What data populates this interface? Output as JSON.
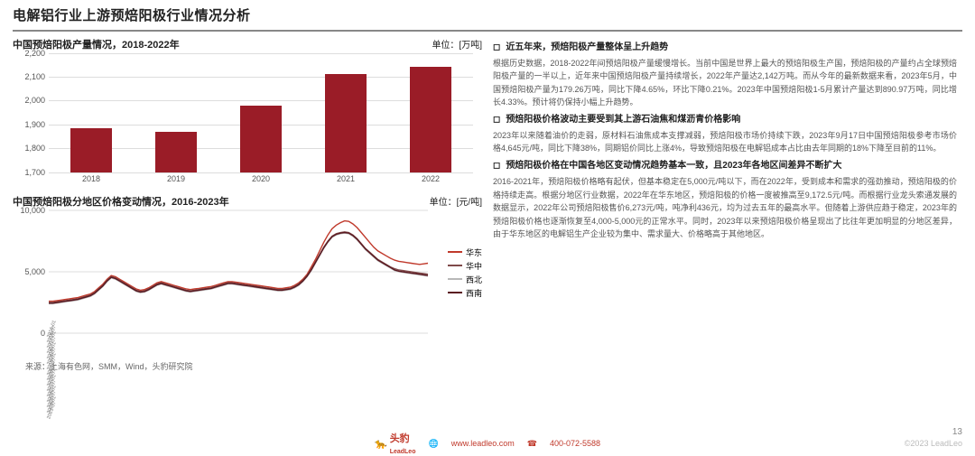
{
  "page_title": "电解铝行业上游预焙阳极行业情况分析",
  "page_number": "13",
  "copyright": "©2023 LeadLeo",
  "source_label": "来源：上海有色网，SMM，Wind，头豹研究院",
  "logo_text_cn": "头豹",
  "logo_text_en": "LeadLeo",
  "footer_url": "www.leadleo.com",
  "footer_phone": "400-072-5588",
  "bar_chart": {
    "title": "中国预焙阳极产量情况，2018-2022年",
    "unit": "单位：[万吨]",
    "type": "bar",
    "categories": [
      "2018",
      "2019",
      "2020",
      "2021",
      "2022"
    ],
    "values": [
      1885,
      1870,
      1980,
      2110,
      2140
    ],
    "ylim": [
      1700,
      2200
    ],
    "yticks": [
      1700,
      1800,
      1900,
      2000,
      2100,
      2200
    ],
    "bar_color": "#9a1c27",
    "grid_color": "#dddddd",
    "axis_font_size": 9
  },
  "line_chart": {
    "title": "中国预焙阳极分地区价格变动情况，2016-2023年",
    "unit": "单位：[元/吨]",
    "type": "line",
    "ylim": [
      0,
      10000
    ],
    "yticks": [
      0,
      5000,
      10000
    ],
    "series": [
      {
        "name": "华东",
        "color": "#c0392b",
        "values": [
          2600,
          2600,
          2650,
          2700,
          2750,
          2800,
          2850,
          2900,
          3000,
          3100,
          3200,
          3400,
          3700,
          4000,
          4400,
          4700,
          4600,
          4400,
          4200,
          4000,
          3800,
          3600,
          3500,
          3550,
          3700,
          3900,
          4100,
          4200,
          4100,
          4000,
          3900,
          3800,
          3700,
          3600,
          3550,
          3600,
          3650,
          3700,
          3750,
          3800,
          3900,
          4000,
          4100,
          4200,
          4200,
          4150,
          4100,
          4050,
          4000,
          3950,
          3900,
          3850,
          3800,
          3750,
          3700,
          3650,
          3650,
          3700,
          3750,
          3900,
          4100,
          4400,
          4800,
          5400,
          6000,
          6700,
          7400,
          8000,
          8500,
          8800,
          9000,
          9150,
          9100,
          8900,
          8600,
          8200,
          7800,
          7400,
          7000,
          6700,
          6500,
          6300,
          6100,
          5950,
          5850,
          5800,
          5750,
          5700,
          5650,
          5600,
          5650,
          5700
        ]
      },
      {
        "name": "华中",
        "color": "#7f4a4a",
        "values": [
          2500,
          2500,
          2550,
          2600,
          2650,
          2700,
          2750,
          2800,
          2900,
          3000,
          3100,
          3300,
          3600,
          3900,
          4300,
          4600,
          4500,
          4300,
          4100,
          3900,
          3700,
          3500,
          3400,
          3450,
          3600,
          3800,
          4000,
          4100,
          4000,
          3900,
          3800,
          3700,
          3600,
          3500,
          3450,
          3500,
          3550,
          3600,
          3650,
          3700,
          3800,
          3900,
          4000,
          4100,
          4100,
          4050,
          4000,
          3950,
          3900,
          3850,
          3800,
          3750,
          3700,
          3650,
          3600,
          3550,
          3550,
          3600,
          3650,
          3800,
          4000,
          4300,
          4700,
          5200,
          5800,
          6400,
          7000,
          7500,
          7900,
          8100,
          8200,
          8250,
          8200,
          8000,
          7700,
          7300,
          6900,
          6600,
          6300,
          6000,
          5800,
          5600,
          5400,
          5250,
          5150,
          5100,
          5050,
          5000,
          4950,
          4900,
          4850,
          4800
        ]
      },
      {
        "name": "西北",
        "color": "#b8b8b8",
        "values": [
          2400,
          2400,
          2450,
          2500,
          2550,
          2600,
          2650,
          2700,
          2800,
          2900,
          3000,
          3200,
          3500,
          3800,
          4200,
          4500,
          4400,
          4200,
          4000,
          3800,
          3600,
          3400,
          3300,
          3350,
          3500,
          3700,
          3900,
          4000,
          3900,
          3800,
          3700,
          3600,
          3500,
          3400,
          3350,
          3400,
          3450,
          3500,
          3550,
          3600,
          3700,
          3800,
          3900,
          4000,
          4000,
          3950,
          3900,
          3850,
          3800,
          3750,
          3700,
          3650,
          3600,
          3550,
          3500,
          3450,
          3450,
          3500,
          3550,
          3700,
          3900,
          4200,
          4600,
          5100,
          5700,
          6300,
          6900,
          7400,
          7800,
          8000,
          8100,
          8150,
          8100,
          7900,
          7600,
          7200,
          6800,
          6500,
          6200,
          5900,
          5700,
          5500,
          5300,
          5100,
          5000,
          4950,
          4900,
          4850,
          4800,
          4750,
          4700,
          4650
        ]
      },
      {
        "name": "西南",
        "color": "#5a1820",
        "values": [
          2450,
          2450,
          2500,
          2550,
          2600,
          2650,
          2700,
          2750,
          2850,
          2950,
          3050,
          3250,
          3550,
          3850,
          4250,
          4550,
          4450,
          4250,
          4050,
          3850,
          3650,
          3450,
          3350,
          3400,
          3550,
          3750,
          3950,
          4050,
          3950,
          3850,
          3750,
          3650,
          3550,
          3450,
          3400,
          3450,
          3500,
          3550,
          3600,
          3650,
          3750,
          3850,
          3950,
          4050,
          4050,
          4000,
          3950,
          3900,
          3850,
          3800,
          3750,
          3700,
          3650,
          3600,
          3550,
          3500,
          3500,
          3550,
          3600,
          3750,
          3950,
          4250,
          4650,
          5150,
          5750,
          6350,
          6950,
          7450,
          7850,
          8050,
          8150,
          8200,
          8150,
          7950,
          7650,
          7250,
          6850,
          6550,
          6250,
          5950,
          5750,
          5550,
          5350,
          5150,
          5050,
          5000,
          4950,
          4900,
          4850,
          4800,
          4750,
          4700
        ]
      }
    ],
    "x_sample_labels": [
      "2016-01",
      "2016-07",
      "2017-01",
      "2017-07",
      "2018-01",
      "2018-07",
      "2019-01",
      "2019-07",
      "2020-01",
      "2020-07",
      "2021-01",
      "2021-07",
      "2022-01",
      "2022-07",
      "2023-01",
      "2023-07"
    ]
  },
  "bullets": [
    {
      "head": "近五年来，预焙阳极产量整体呈上升趋势",
      "body": "根据历史数据，2018-2022年间预焙阳极产量缓慢增长。当前中国是世界上最大的预焙阳极生产国，预焙阳极的产量约占全球预焙阳极产量的一半以上，近年来中国预焙阳极产量持续增长，2022年产量达2,142万吨。而从今年的最新数据来看，2023年5月，中国预焙阳极产量为179.26万吨，同比下降4.65%，环比下降0.21%。2023年中国预焙阳极1-5月累计产量达到890.97万吨，同比增长4.33%。预计将仍保持小幅上升趋势。"
    },
    {
      "head": "预焙阳极价格波动主要受到其上游石油焦和煤沥青价格影响",
      "body": "2023年以来随着油价的走弱，原材料石油焦成本支撑减弱，预焙阳极市场价持续下跌，2023年9月17日中国预焙阳极参考市场价格4,645元/吨，同比下降38%，同期铝价同比上涨4%，导致预焙阳极在电解铝成本占比由去年同期的18%下降至目前的11%。"
    },
    {
      "head": "预焙阳极价格在中国各地区变动情况趋势基本一致，且2023年各地区间差异不断扩大",
      "body": "2016-2021年，预焙阳极价格略有起伏，但基本稳定在5,000元/吨以下，而在2022年，受到成本和需求的强劲推动，预焙阳极的价格持续走高。根据分地区行业数据，2022年在华东地区，预焙阳极的价格一度被推高至9,172.5元/吨。而根据行业龙头索通发展的数据显示，2022年公司预焙阳极售价6,273元/吨，吨净利436元，均为过去五年的最高水平。但随着上游供应趋于稳定，2023年的预焙阳极价格也逐渐恢复至4,000-5,000元的正常水平。同时，2023年以来预焙阳极价格呈现出了比往年更加明显的分地区差异，由于华东地区的电解铝生产企业较为集中、需求量大、价格略高于其他地区。"
    }
  ]
}
